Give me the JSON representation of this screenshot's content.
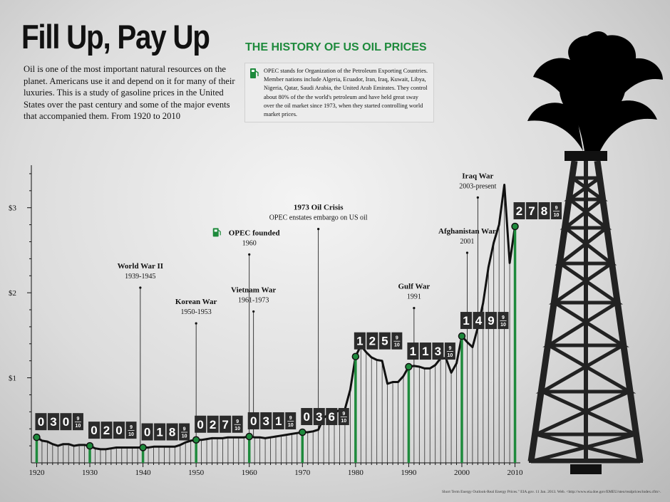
{
  "header": {
    "title": "Fill Up, Pay Up",
    "subtitle": "THE HISTORY OF US OIL PRICES",
    "intro": "Oil is one of the most important natural resources on the planet. Americans use it and depend on it for many of their luxuries. This is a study of gasoline prices in the United States over the past century and some of the major events that accompanied them. From 1920 to 2010",
    "opec_note": "OPEC stands for Organization of the Petroleum Exporting Countries. Member nations include Algeria, Ecuador, Iran, Iraq, Kuwait, Libya, Nigeria, Qatar, Saudi Arabia, the United Arab Emirates. They control about 80% of the the world's petroleum and have held great sway over the oil market since 1973, when they started controlling world market prices.",
    "source": "Short Term Energy Outlook-Real Energy Prices.\" EIA.gov. 11 Jan. 2013. Web. <http://www.eia.doe.gov/EMEU/steo/realprices/index.cfm>."
  },
  "colors": {
    "accent_green": "#1e8a3c",
    "line": "#111111",
    "counter": "#2b2b2b"
  },
  "chart_data": {
    "type": "line",
    "title": "",
    "xlabel": "",
    "ylabel": "",
    "xlim": [
      1919,
      2011
    ],
    "ylim": [
      0,
      3.5
    ],
    "y_ticks": [
      {
        "value": 1,
        "label": "$1"
      },
      {
        "value": 2,
        "label": "$2"
      },
      {
        "value": 3,
        "label": "$3"
      }
    ],
    "x_ticks": [
      1920,
      1930,
      1940,
      1950,
      1960,
      1970,
      1980,
      1990,
      2000,
      2010
    ],
    "series": [
      {
        "x": [
          1919,
          1920,
          1921,
          1922,
          1923,
          1924,
          1925,
          1926,
          1927,
          1928,
          1929,
          1930,
          1931,
          1932,
          1933,
          1934,
          1935,
          1936,
          1937,
          1938,
          1939,
          1940,
          1941,
          1942,
          1943,
          1944,
          1945,
          1946,
          1947,
          1948,
          1949,
          1950,
          1951,
          1952,
          1953,
          1954,
          1955,
          1956,
          1957,
          1958,
          1959,
          1960,
          1961,
          1962,
          1963,
          1964,
          1965,
          1966,
          1967,
          1968,
          1969,
          1970,
          1971,
          1972,
          1973,
          1974,
          1975,
          1976,
          1977,
          1978,
          1979,
          1980,
          1981,
          1982,
          1983,
          1984,
          1985,
          1986,
          1987,
          1988,
          1989,
          1990,
          1991,
          1992,
          1993,
          1994,
          1995,
          1996,
          1997,
          1998,
          1999,
          2000,
          2001,
          2002,
          2003,
          2004,
          2005,
          2006,
          2007,
          2008,
          2009,
          2010
        ],
        "values": [
          0.27,
          0.3,
          0.26,
          0.25,
          0.22,
          0.2,
          0.22,
          0.22,
          0.2,
          0.21,
          0.21,
          0.2,
          0.17,
          0.16,
          0.16,
          0.17,
          0.18,
          0.18,
          0.18,
          0.18,
          0.18,
          0.18,
          0.18,
          0.19,
          0.19,
          0.19,
          0.19,
          0.19,
          0.21,
          0.24,
          0.26,
          0.27,
          0.27,
          0.28,
          0.29,
          0.29,
          0.29,
          0.3,
          0.3,
          0.3,
          0.3,
          0.31,
          0.3,
          0.3,
          0.29,
          0.3,
          0.31,
          0.32,
          0.33,
          0.34,
          0.35,
          0.36,
          0.36,
          0.37,
          0.39,
          0.53,
          0.57,
          0.59,
          0.62,
          0.63,
          0.86,
          1.25,
          1.38,
          1.3,
          1.24,
          1.21,
          1.2,
          0.93,
          0.95,
          0.95,
          1.02,
          1.13,
          1.14,
          1.13,
          1.11,
          1.11,
          1.15,
          1.23,
          1.23,
          1.06,
          1.17,
          1.49,
          1.42,
          1.36,
          1.59,
          1.88,
          2.3,
          2.59,
          2.8,
          3.27,
          2.35,
          2.78
        ]
      }
    ],
    "price_markers": [
      {
        "year": 1920,
        "value": 0.3,
        "digits": [
          "0",
          "3",
          "0"
        ]
      },
      {
        "year": 1930,
        "value": 0.2,
        "digits": [
          "0",
          "2",
          "0"
        ]
      },
      {
        "year": 1940,
        "value": 0.18,
        "digits": [
          "0",
          "1",
          "8"
        ]
      },
      {
        "year": 1950,
        "value": 0.27,
        "digits": [
          "0",
          "2",
          "7"
        ]
      },
      {
        "year": 1960,
        "value": 0.31,
        "digits": [
          "0",
          "3",
          "1"
        ]
      },
      {
        "year": 1970,
        "value": 0.36,
        "digits": [
          "0",
          "3",
          "6"
        ]
      },
      {
        "year": 1980,
        "value": 1.25,
        "digits": [
          "1",
          "2",
          "5"
        ]
      },
      {
        "year": 1990,
        "value": 1.13,
        "digits": [
          "1",
          "1",
          "3"
        ]
      },
      {
        "year": 2000,
        "value": 1.49,
        "digits": [
          "1",
          "4",
          "9"
        ]
      },
      {
        "year": 2010,
        "value": 2.78,
        "digits": [
          "2",
          "7",
          "8"
        ]
      }
    ],
    "fraction": {
      "num": "9",
      "den": "10"
    },
    "events": [
      {
        "name": "World War II",
        "sub": "1939-1945",
        "year": 1939.5,
        "top_value": 2.06
      },
      {
        "name": "Korean War",
        "sub": "1950-1953",
        "year": 1950,
        "top_value": 1.64
      },
      {
        "name": "OPEC founded",
        "sub": "1960",
        "year": 1960,
        "top_value": 2.45,
        "icon": "gas-pump-icon"
      },
      {
        "name": "Vietnam War",
        "sub": "1961-1973",
        "year": 1960.8,
        "top_value": 1.78
      },
      {
        "name": "1973 Oil Crisis",
        "sub": "OPEC enstates embargo on US oil",
        "year": 1973,
        "top_value": 2.75
      },
      {
        "name": "Gulf War",
        "sub": "1991",
        "year": 1991,
        "top_value": 1.82
      },
      {
        "name": "Afghanistan War",
        "sub": "2001",
        "year": 2001,
        "top_value": 2.47
      },
      {
        "name": "Iraq War",
        "sub": "2003-present",
        "year": 2003,
        "top_value": 3.12
      }
    ]
  }
}
